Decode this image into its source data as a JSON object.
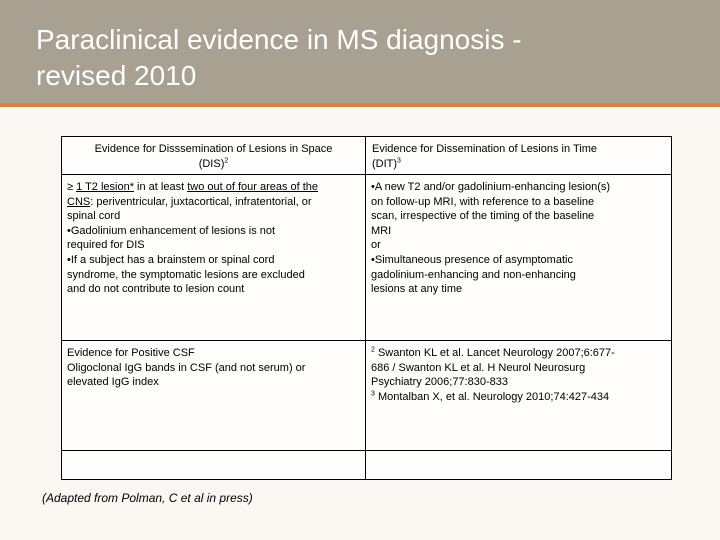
{
  "slide": {
    "title_line1": "Paraclinical evidence in MS diagnosis -",
    "title_line2": "revised 2010",
    "accent_color": "#e0823c",
    "title_bar_color": "#a8a091"
  },
  "table": {
    "header": {
      "dis_line1": "Evidence for Disssemination of Lesions in Space",
      "dis_line2": "(DIS)",
      "dis_sup": "2",
      "dit_line1": "Evidence for Dissemination of Lesions in Time",
      "dit_line2": "(DIT)",
      "dit_sup": "3"
    },
    "dis": {
      "l1_a": "≥ ",
      "l1_b": "1 T2 lesion*",
      "l1_c": " in at least ",
      "l1_d": "two out of four areas of the",
      "l2_a": "CNS",
      "l2_b": ": periventricular, juxtacortical, infratentorial, or",
      "l3": "spinal cord",
      "l4": "•Gadolinium enhancement of lesions is not",
      "l5": "required for DIS",
      "l6": "•If a subject has a brainstem or spinal cord",
      "l7": "syndrome, the symptomatic lesions are excluded",
      "l8": "and do not contribute to lesion count"
    },
    "dit": {
      "l1": "•A new T2 and/or gadolinium-enhancing lesion(s)",
      "l2": "on follow-up MRI, with reference to a baseline",
      "l3": "scan, irrespective of the timing of the baseline",
      "l4": "MRI",
      "l5": "or",
      "l6": "•Simultaneous presence of asymptomatic",
      "l7": "gadolinium-enhancing and non-enhancing",
      "l8": "lesions at any time"
    },
    "csf": {
      "l1": "Evidence for Positive CSF",
      "l2": "Oligoclonal IgG bands in CSF (and not serum) or",
      "l3": "elevated IgG index"
    },
    "refs": {
      "sup1": "2",
      "l1": " Swanton KL et al. Lancet Neurology 2007;6:677-",
      "l2": "686 / Swanton KL et al.  H Neurol Neurosurg",
      "l3": "Psychiatry 2006;77:830-833",
      "sup2": "3",
      "l4": " Montalban X, et al.  Neurology 2010;74:427-434"
    }
  },
  "footer": {
    "adapted": "(Adapted from Polman, C et al in press)"
  }
}
